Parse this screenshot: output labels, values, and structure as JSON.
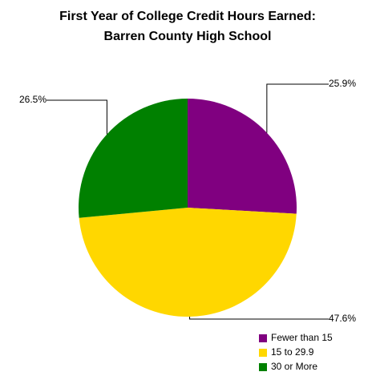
{
  "chart_data": {
    "type": "pie",
    "title": [
      "First Year of College Credit Hours Earned:",
      "Barren County High School"
    ],
    "categories": [
      "Fewer than 15",
      "15 to 29.9",
      "30 or More"
    ],
    "values": [
      25.9,
      47.6,
      26.5
    ],
    "value_labels": [
      "25.9%",
      "47.6%",
      "26.5%"
    ],
    "colors": [
      "#800080",
      "#ffd700",
      "#008000"
    ],
    "legend": "bottom-right"
  }
}
